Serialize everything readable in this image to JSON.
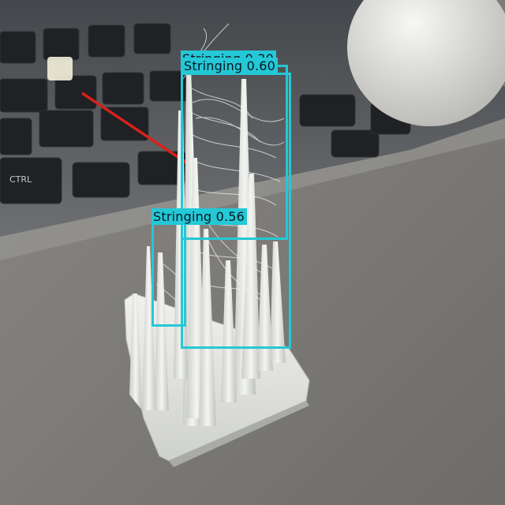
{
  "image": {
    "description_icon": "3d-print-stringing-test-photo",
    "keyboard_key_label": "CTRL"
  },
  "style": {
    "box_color": "#24c8d6",
    "arrow_color": "#d8201c",
    "label_text_color": "#0b1720"
  },
  "detections": [
    {
      "label": "Stringing",
      "score": "0.30",
      "text": "Stringing 0.30"
    },
    {
      "label": "Stringing",
      "score": "0.60",
      "text": "Stringing 0.60"
    },
    {
      "label": "Stringing",
      "score": "0.56",
      "text": "Stringing 0.56"
    }
  ]
}
